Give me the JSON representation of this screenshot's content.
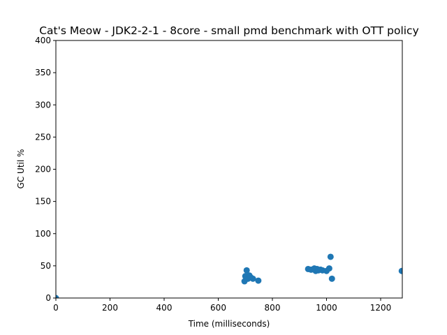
{
  "chart_data": {
    "type": "scatter",
    "title": "Cat's Meow - JDK2-2-1 - 8core -  small pmd benchmark with OTT policy",
    "xlabel": "Time (milliseconds)",
    "ylabel": "GC Util %",
    "xlim": [
      0,
      1280
    ],
    "ylim": [
      0,
      400
    ],
    "xticks": [
      0,
      200,
      400,
      600,
      800,
      1000,
      1200
    ],
    "yticks": [
      0,
      50,
      100,
      150,
      200,
      250,
      300,
      350,
      400
    ],
    "grid": false,
    "marker_color": "#1f77b4",
    "series": [
      {
        "x": [
          0,
          697,
          700,
          705,
          710,
          715,
          720,
          728,
          748,
          932,
          943,
          955,
          960,
          965,
          970,
          978,
          985,
          1000,
          1010,
          1015,
          1020,
          1278
        ],
        "y": [
          0,
          26,
          34,
          43,
          30,
          35,
          32,
          30,
          27,
          45,
          44,
          46,
          42,
          45,
          43,
          44,
          43,
          42,
          46,
          64,
          30,
          42
        ]
      }
    ]
  }
}
